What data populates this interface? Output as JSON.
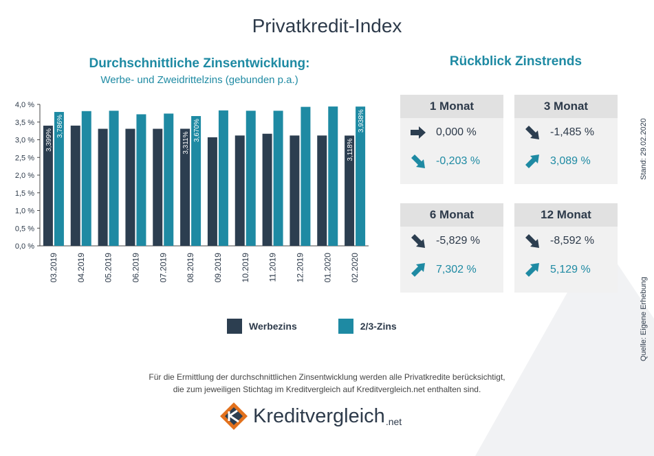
{
  "title": "Privatkredit-Index",
  "chart_data": {
    "type": "bar",
    "title": "Durchschnittliche Zinsentwicklung:",
    "subtitle": "Werbe- und Zweidrittelzins (gebunden p.a.)",
    "categories": [
      "03.2019",
      "04.2019",
      "05.2019",
      "06.2019",
      "07.2019",
      "08.2019",
      "09.2019",
      "10.2019",
      "11.2019",
      "12.2019",
      "01.2020",
      "02.2020"
    ],
    "y_ticks": [
      "0,0 %",
      "0,5 %",
      "1,0 %",
      "1,5 %",
      "2,0 %",
      "2,5 %",
      "3,0 %",
      "3,5 %",
      "4,0 %"
    ],
    "ylim": [
      0,
      4.0
    ],
    "grid": false,
    "legend": "bottom",
    "series": [
      {
        "name": "Werbezins",
        "color": "#2c3e50",
        "values": [
          3.399,
          3.4,
          3.31,
          3.31,
          3.31,
          3.311,
          3.07,
          3.12,
          3.17,
          3.12,
          3.12,
          3.118
        ],
        "labels": {
          "0": "3,399%",
          "5": "3,311%",
          "11": "3,118%"
        }
      },
      {
        "name": "2/3-Zins",
        "color": "#1e8aa3",
        "values": [
          3.786,
          3.81,
          3.82,
          3.72,
          3.74,
          3.67,
          3.83,
          3.82,
          3.82,
          3.93,
          3.94,
          3.938
        ],
        "labels": {
          "0": "3,786%",
          "5": "3,670%",
          "11": "3,938%"
        }
      }
    ]
  },
  "trends": {
    "title": "Rückblick Zinstrends",
    "boxes": [
      {
        "label": "1 Monat",
        "werbe": "0,000 %",
        "werbe_dir": "right",
        "zins23": "-0,203 %",
        "zins23_dir": "down"
      },
      {
        "label": "3 Monat",
        "werbe": "-1,485 %",
        "werbe_dir": "down",
        "zins23": "3,089 %",
        "zins23_dir": "up"
      },
      {
        "label": "6 Monat",
        "werbe": "-5,829 %",
        "werbe_dir": "down",
        "zins23": "7,302 %",
        "zins23_dir": "up"
      },
      {
        "label": "12 Monat",
        "werbe": "-8,592 %",
        "werbe_dir": "down",
        "zins23": "5,129 %",
        "zins23_dir": "up"
      }
    ]
  },
  "side": {
    "stand": "Stand: 29.02.2020",
    "quelle": "Quelle: Eigene Erhebung"
  },
  "footnote": {
    "line1": "Für die Ermittlung der durchschnittlichen Zinsentwicklung werden alle Privatkredite berücksichtigt,",
    "line2": "die zum jeweiligen Stichtag im Kreditvergleich auf Kreditvergleich.net enthalten sind."
  },
  "logo": {
    "name": "Kreditvergleich",
    "suffix": ".net",
    "icon": "kreditvergleich-logo-icon"
  },
  "colors": {
    "dark": "#2c3e50",
    "teal": "#1e8aa3",
    "box_bg": "#f1f1f1",
    "box_head": "#e1e1e1"
  }
}
